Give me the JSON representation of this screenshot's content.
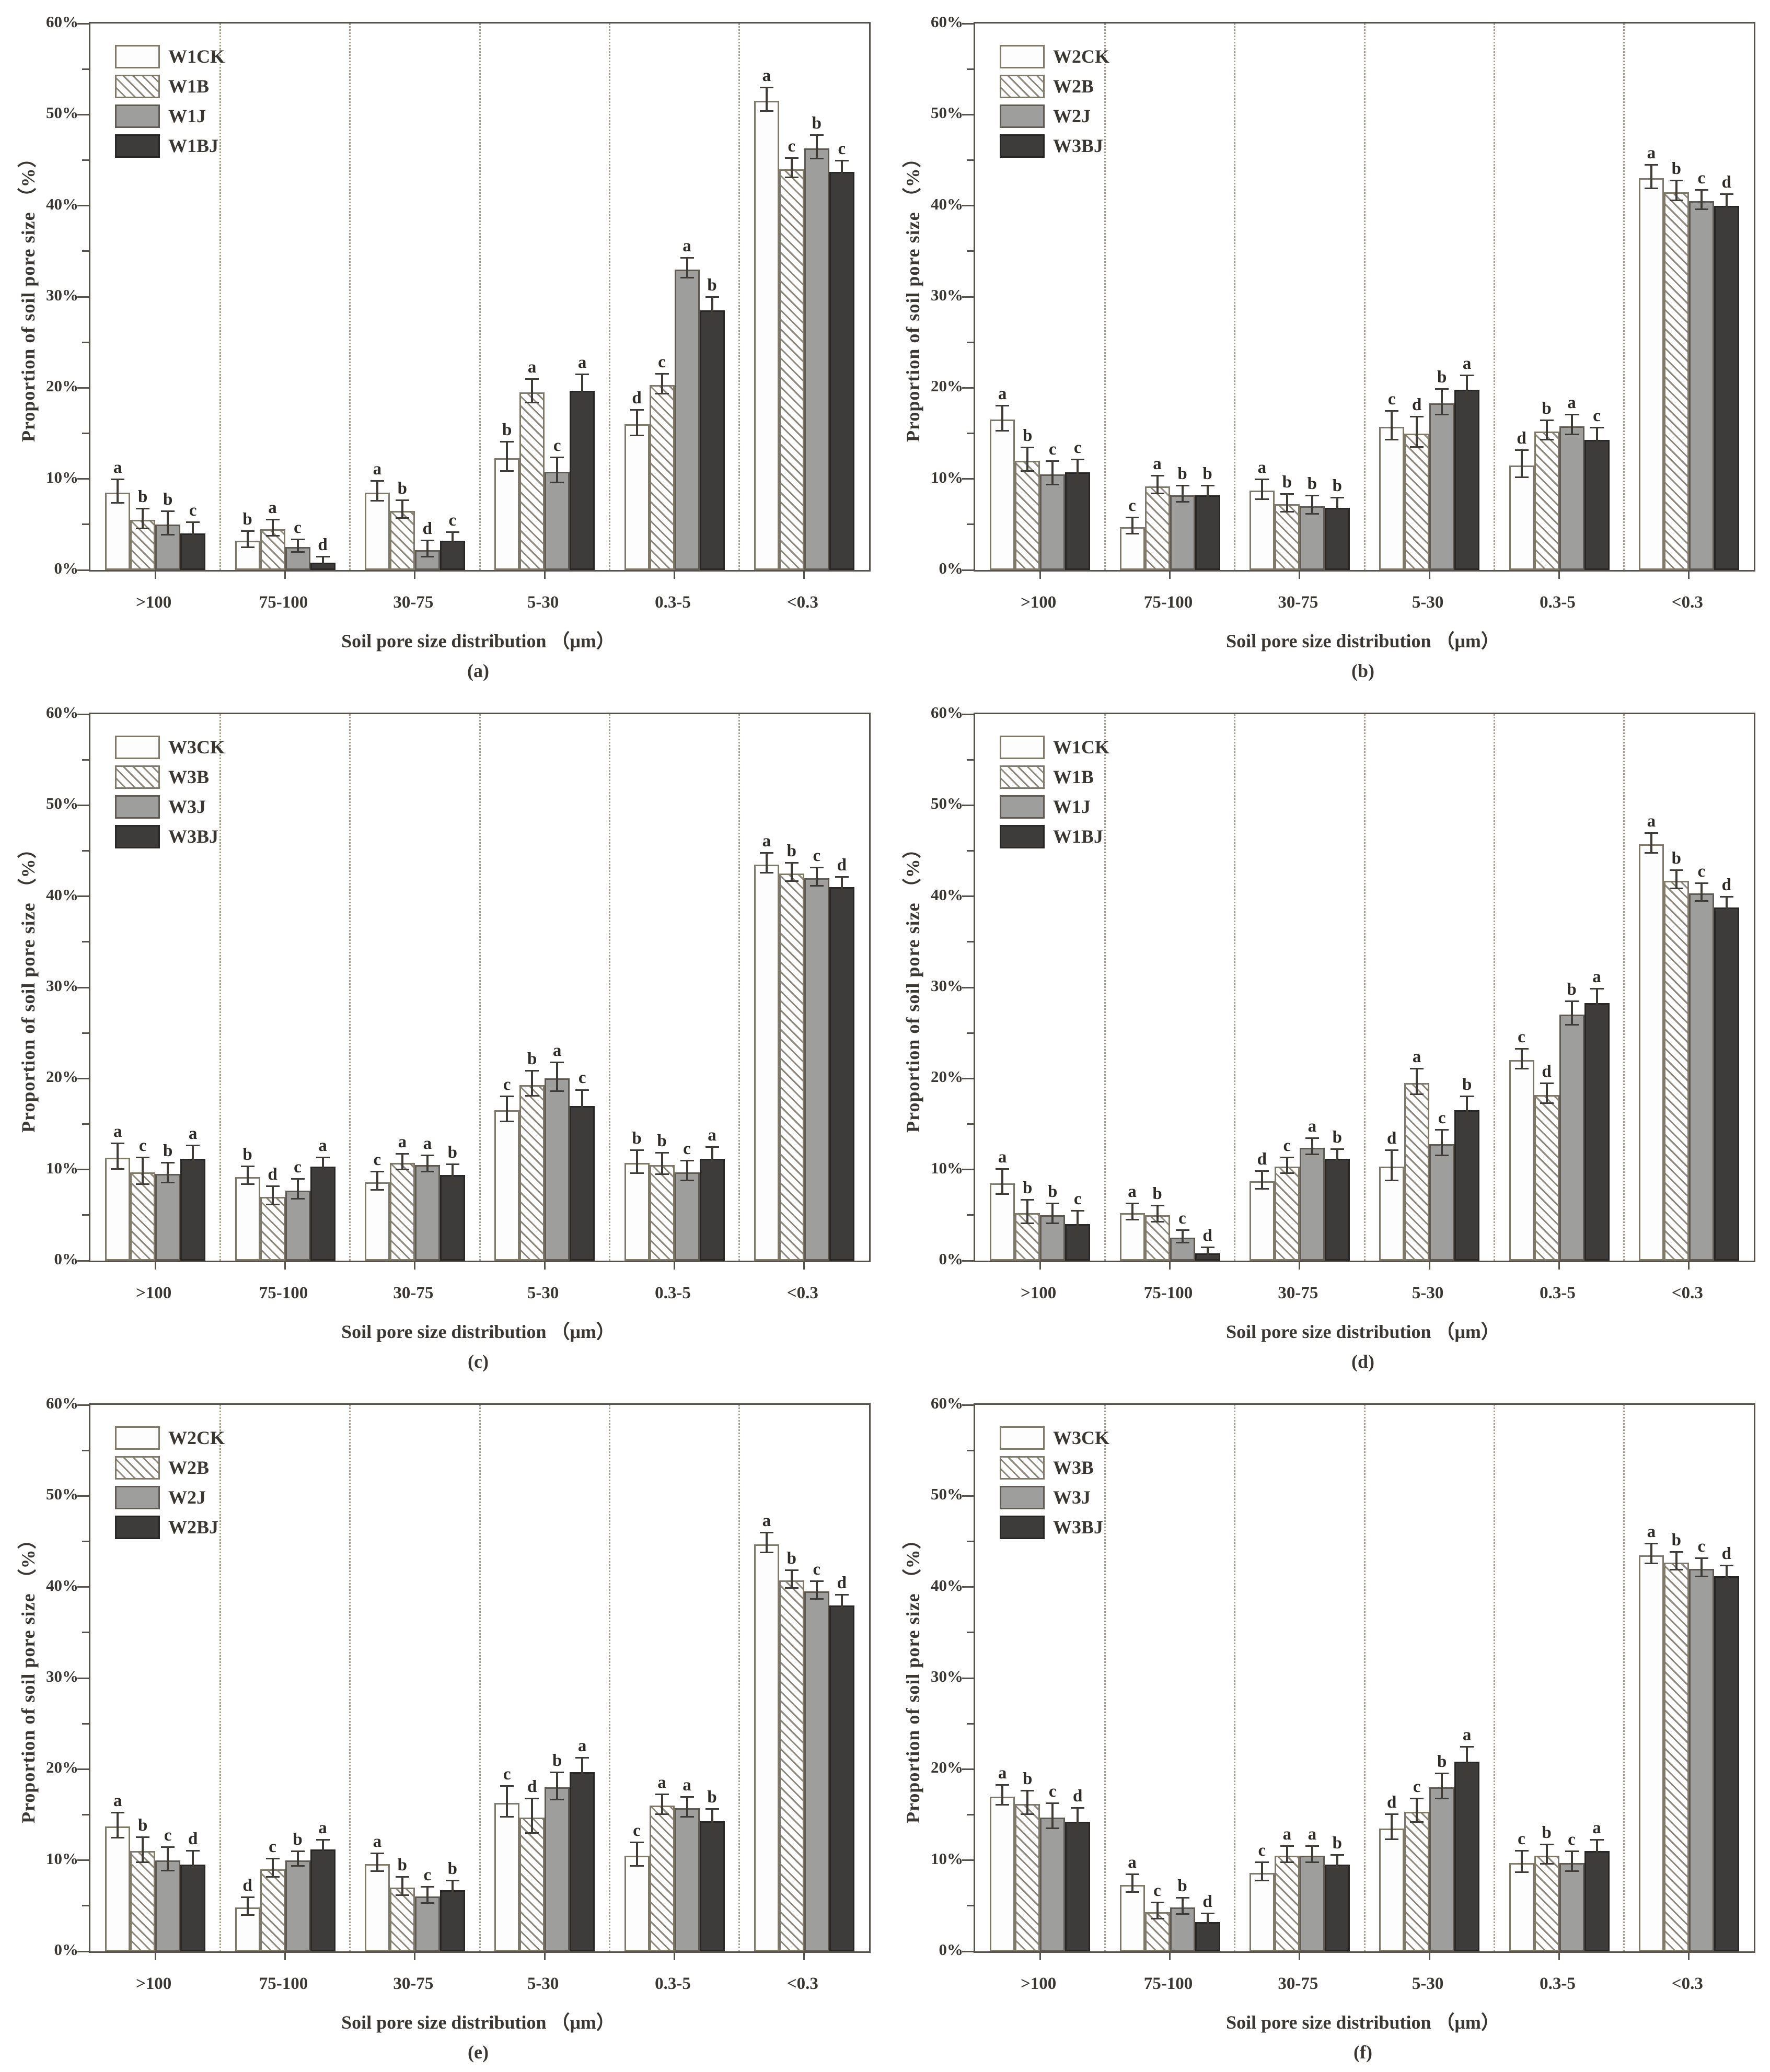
{
  "figure": {
    "y_axis_label": "Proportion of soil pore size （%）",
    "x_axis_label": "Soil pore size distribution （μm）",
    "y_tick_labels": [
      "0%",
      "10%",
      "20%",
      "30%",
      "40%",
      "50%",
      "60%"
    ],
    "y_tick_values": [
      0,
      10,
      20,
      30,
      40,
      50,
      60
    ],
    "categories": [
      ">100",
      "75-100",
      "30-75",
      "5-30",
      "0.3-5",
      "<0.3"
    ]
  },
  "colors": {
    "axis": "#57524b",
    "text": "#3a3631",
    "bar_white": "#fdfdfd",
    "bar_gray": "#9e9e9c",
    "bar_dark": "#3d3c3a",
    "hatch_line": "#8d877b",
    "gridline": "#a29b8f"
  },
  "chart_data": [
    {
      "type": "bar",
      "label": "(a)",
      "ylim": [
        0,
        60
      ],
      "grid": "dotted-vertical",
      "legend_position": "top-left",
      "categories": [
        ">100",
        "75-100",
        "30-75",
        "5-30",
        "0.3-5",
        "<0.3"
      ],
      "series": [
        {
          "name": "W1CK",
          "pattern": "white",
          "values": [
            8.5,
            3.2,
            8.5,
            12.3,
            16.0,
            51.5
          ],
          "errors": [
            1.2,
            0.8,
            1.0,
            1.5,
            1.3,
            1.2
          ],
          "letters": [
            "a",
            "b",
            "a",
            "b",
            "d",
            "a"
          ]
        },
        {
          "name": "W1B",
          "pattern": "hatch",
          "values": [
            5.5,
            4.5,
            6.5,
            19.5,
            20.3,
            44.0
          ],
          "errors": [
            1.0,
            0.8,
            0.9,
            1.2,
            1.0,
            1.0
          ],
          "letters": [
            "b",
            "a",
            "b",
            "a",
            "c",
            "c"
          ]
        },
        {
          "name": "W1J",
          "pattern": "gray",
          "values": [
            5.0,
            2.5,
            2.2,
            10.8,
            33.0,
            46.3
          ],
          "errors": [
            1.2,
            0.6,
            0.8,
            1.3,
            1.0,
            1.2
          ],
          "letters": [
            "b",
            "c",
            "d",
            "c",
            "a",
            "b"
          ]
        },
        {
          "name": "W1BJ",
          "pattern": "dark",
          "values": [
            4.0,
            0.8,
            3.2,
            19.7,
            28.5,
            43.7
          ],
          "errors": [
            1.0,
            0.4,
            0.7,
            1.5,
            1.2,
            1.0
          ],
          "letters": [
            "c",
            "d",
            "c",
            "a",
            "b",
            "c"
          ]
        }
      ]
    },
    {
      "type": "bar",
      "label": "(b)",
      "ylim": [
        0,
        60
      ],
      "grid": "dotted-vertical",
      "legend_position": "top-left",
      "categories": [
        ">100",
        "75-100",
        "30-75",
        "5-30",
        "0.3-5",
        "<0.3"
      ],
      "series": [
        {
          "name": "W2CK",
          "pattern": "white",
          "values": [
            16.5,
            4.7,
            8.7,
            15.7,
            11.5,
            43.0
          ],
          "errors": [
            1.3,
            0.8,
            1.0,
            1.5,
            1.4,
            1.2
          ],
          "letters": [
            "a",
            "c",
            "a",
            "c",
            "d",
            "a"
          ]
        },
        {
          "name": "W2B",
          "pattern": "hatch",
          "values": [
            12.0,
            9.2,
            7.2,
            15.0,
            15.2,
            41.5
          ],
          "errors": [
            1.2,
            0.9,
            0.9,
            1.6,
            1.0,
            1.0
          ],
          "letters": [
            "b",
            "a",
            "b",
            "d",
            "b",
            "b"
          ]
        },
        {
          "name": "W2J",
          "pattern": "gray",
          "values": [
            10.5,
            8.2,
            7.0,
            18.3,
            15.8,
            40.5
          ],
          "errors": [
            1.2,
            0.8,
            0.9,
            1.3,
            1.0,
            1.0
          ],
          "letters": [
            "c",
            "b",
            "b",
            "b",
            "a",
            "c"
          ]
        },
        {
          "name": "W3BJ",
          "pattern": "dark",
          "values": [
            10.7,
            8.2,
            6.8,
            19.8,
            14.3,
            40.0
          ],
          "errors": [
            1.2,
            0.8,
            0.9,
            1.3,
            1.1,
            1.0
          ],
          "letters": [
            "c",
            "b",
            "b",
            "a",
            "c",
            "d"
          ]
        }
      ]
    },
    {
      "type": "bar",
      "label": "(c)",
      "ylim": [
        0,
        60
      ],
      "grid": "dotted-vertical",
      "legend_position": "top-left",
      "categories": [
        ">100",
        "75-100",
        "30-75",
        "5-30",
        "0.3-5",
        "<0.3"
      ],
      "series": [
        {
          "name": "W3CK",
          "pattern": "white",
          "values": [
            11.3,
            9.2,
            8.6,
            16.5,
            10.7,
            43.5
          ],
          "errors": [
            1.3,
            0.9,
            0.9,
            1.3,
            1.2,
            1.0
          ],
          "letters": [
            "a",
            "b",
            "c",
            "c",
            "b",
            "a"
          ]
        },
        {
          "name": "W3B",
          "pattern": "hatch",
          "values": [
            9.7,
            7.0,
            10.7,
            19.3,
            10.5,
            42.5
          ],
          "errors": [
            1.4,
            0.9,
            0.8,
            1.3,
            1.1,
            0.9
          ],
          "letters": [
            "c",
            "d",
            "a",
            "b",
            "b",
            "b"
          ]
        },
        {
          "name": "W3J",
          "pattern": "gray",
          "values": [
            9.5,
            7.7,
            10.5,
            20.0,
            9.7,
            42.0
          ],
          "errors": [
            1.0,
            1.0,
            0.8,
            1.5,
            1.0,
            0.9
          ],
          "letters": [
            "b",
            "c",
            "a",
            "a",
            "c",
            "c"
          ]
        },
        {
          "name": "W3BJ",
          "pattern": "dark",
          "values": [
            11.2,
            10.3,
            9.4,
            17.0,
            11.2,
            41.0
          ],
          "errors": [
            1.2,
            0.8,
            0.9,
            1.5,
            1.0,
            0.9
          ],
          "letters": [
            "a",
            "a",
            "b",
            "c",
            "a",
            "d"
          ]
        }
      ]
    },
    {
      "type": "bar",
      "label": "(d)",
      "ylim": [
        0,
        60
      ],
      "grid": "dotted-vertical",
      "legend_position": "top-left",
      "categories": [
        ">100",
        "75-100",
        "30-75",
        "5-30",
        "0.3-5",
        "<0.3"
      ],
      "series": [
        {
          "name": "W1CK",
          "pattern": "white",
          "values": [
            8.5,
            5.2,
            8.7,
            10.3,
            22.0,
            45.7
          ],
          "errors": [
            1.3,
            0.8,
            0.9,
            1.6,
            1.0,
            1.0
          ],
          "letters": [
            "a",
            "a",
            "d",
            "d",
            "c",
            "a"
          ]
        },
        {
          "name": "W1B",
          "pattern": "hatch",
          "values": [
            5.2,
            5.0,
            10.3,
            19.5,
            18.2,
            41.7
          ],
          "errors": [
            1.2,
            0.8,
            0.8,
            1.3,
            1.0,
            0.9
          ],
          "letters": [
            "b",
            "b",
            "c",
            "a",
            "d",
            "b"
          ]
        },
        {
          "name": "W1J",
          "pattern": "gray",
          "values": [
            5.0,
            2.5,
            12.4,
            12.8,
            27.0,
            40.3
          ],
          "errors": [
            1.0,
            0.6,
            0.8,
            1.3,
            1.2,
            0.9
          ],
          "letters": [
            "b",
            "c",
            "a",
            "c",
            "b",
            "c"
          ]
        },
        {
          "name": "W1BJ",
          "pattern": "dark",
          "values": [
            4.0,
            0.8,
            11.2,
            16.5,
            28.3,
            38.8
          ],
          "errors": [
            1.2,
            0.4,
            0.8,
            1.3,
            1.3,
            0.9
          ],
          "letters": [
            "c",
            "d",
            "b",
            "b",
            "a",
            "d"
          ]
        }
      ]
    },
    {
      "type": "bar",
      "label": "(e)",
      "ylim": [
        0,
        60
      ],
      "grid": "dotted-vertical",
      "legend_position": "top-left",
      "categories": [
        ">100",
        "75-100",
        "30-75",
        "5-30",
        "0.3-5",
        "<0.3"
      ],
      "series": [
        {
          "name": "W2CK",
          "pattern": "white",
          "values": [
            13.7,
            4.8,
            9.6,
            16.3,
            10.5,
            44.7
          ],
          "errors": [
            1.3,
            0.9,
            0.9,
            1.6,
            1.2,
            1.0
          ],
          "letters": [
            "a",
            "d",
            "a",
            "c",
            "c",
            "a"
          ]
        },
        {
          "name": "W2B",
          "pattern": "hatch",
          "values": [
            11.0,
            9.0,
            7.0,
            14.7,
            16.0,
            40.7
          ],
          "errors": [
            1.3,
            0.9,
            0.9,
            1.8,
            1.0,
            0.9
          ],
          "letters": [
            "b",
            "c",
            "b",
            "d",
            "a",
            "b"
          ]
        },
        {
          "name": "W2J",
          "pattern": "gray",
          "values": [
            10.0,
            10.0,
            6.0,
            18.0,
            15.7,
            39.5
          ],
          "errors": [
            1.2,
            0.7,
            0.8,
            1.4,
            1.0,
            0.9
          ],
          "letters": [
            "c",
            "b",
            "c",
            "b",
            "a",
            "c"
          ]
        },
        {
          "name": "W2BJ",
          "pattern": "dark",
          "values": [
            9.5,
            11.2,
            6.7,
            19.7,
            14.3,
            38.0
          ],
          "errors": [
            1.3,
            0.8,
            0.8,
            1.3,
            1.1,
            0.9
          ],
          "letters": [
            "d",
            "a",
            "b",
            "a",
            "b",
            "d"
          ]
        }
      ]
    },
    {
      "type": "bar",
      "label": "(f)",
      "ylim": [
        0,
        60
      ],
      "grid": "dotted-vertical",
      "legend_position": "top-left",
      "categories": [
        ">100",
        "75-100",
        "30-75",
        "5-30",
        "0.3-5",
        "<0.3"
      ],
      "series": [
        {
          "name": "W3CK",
          "pattern": "white",
          "values": [
            17.0,
            7.3,
            8.6,
            13.5,
            9.7,
            43.5
          ],
          "errors": [
            1.0,
            0.9,
            0.9,
            1.3,
            1.1,
            1.0
          ],
          "letters": [
            "a",
            "a",
            "c",
            "d",
            "c",
            "a"
          ]
        },
        {
          "name": "W3B",
          "pattern": "hatch",
          "values": [
            16.2,
            4.3,
            10.5,
            15.3,
            10.5,
            42.7
          ],
          "errors": [
            1.2,
            0.8,
            0.8,
            1.2,
            1.0,
            0.9
          ],
          "letters": [
            "b",
            "c",
            "a",
            "c",
            "b",
            "b"
          ]
        },
        {
          "name": "W3J",
          "pattern": "gray",
          "values": [
            14.7,
            4.8,
            10.5,
            18.0,
            9.7,
            42.0
          ],
          "errors": [
            1.3,
            0.8,
            0.8,
            1.3,
            1.0,
            0.9
          ],
          "letters": [
            "c",
            "b",
            "a",
            "b",
            "c",
            "c"
          ]
        },
        {
          "name": "W3BJ",
          "pattern": "dark",
          "values": [
            14.2,
            3.2,
            9.5,
            20.8,
            11.0,
            41.2
          ],
          "errors": [
            1.3,
            0.7,
            0.8,
            1.4,
            1.0,
            0.9
          ],
          "letters": [
            "d",
            "d",
            "b",
            "a",
            "a",
            "d"
          ]
        }
      ]
    }
  ]
}
